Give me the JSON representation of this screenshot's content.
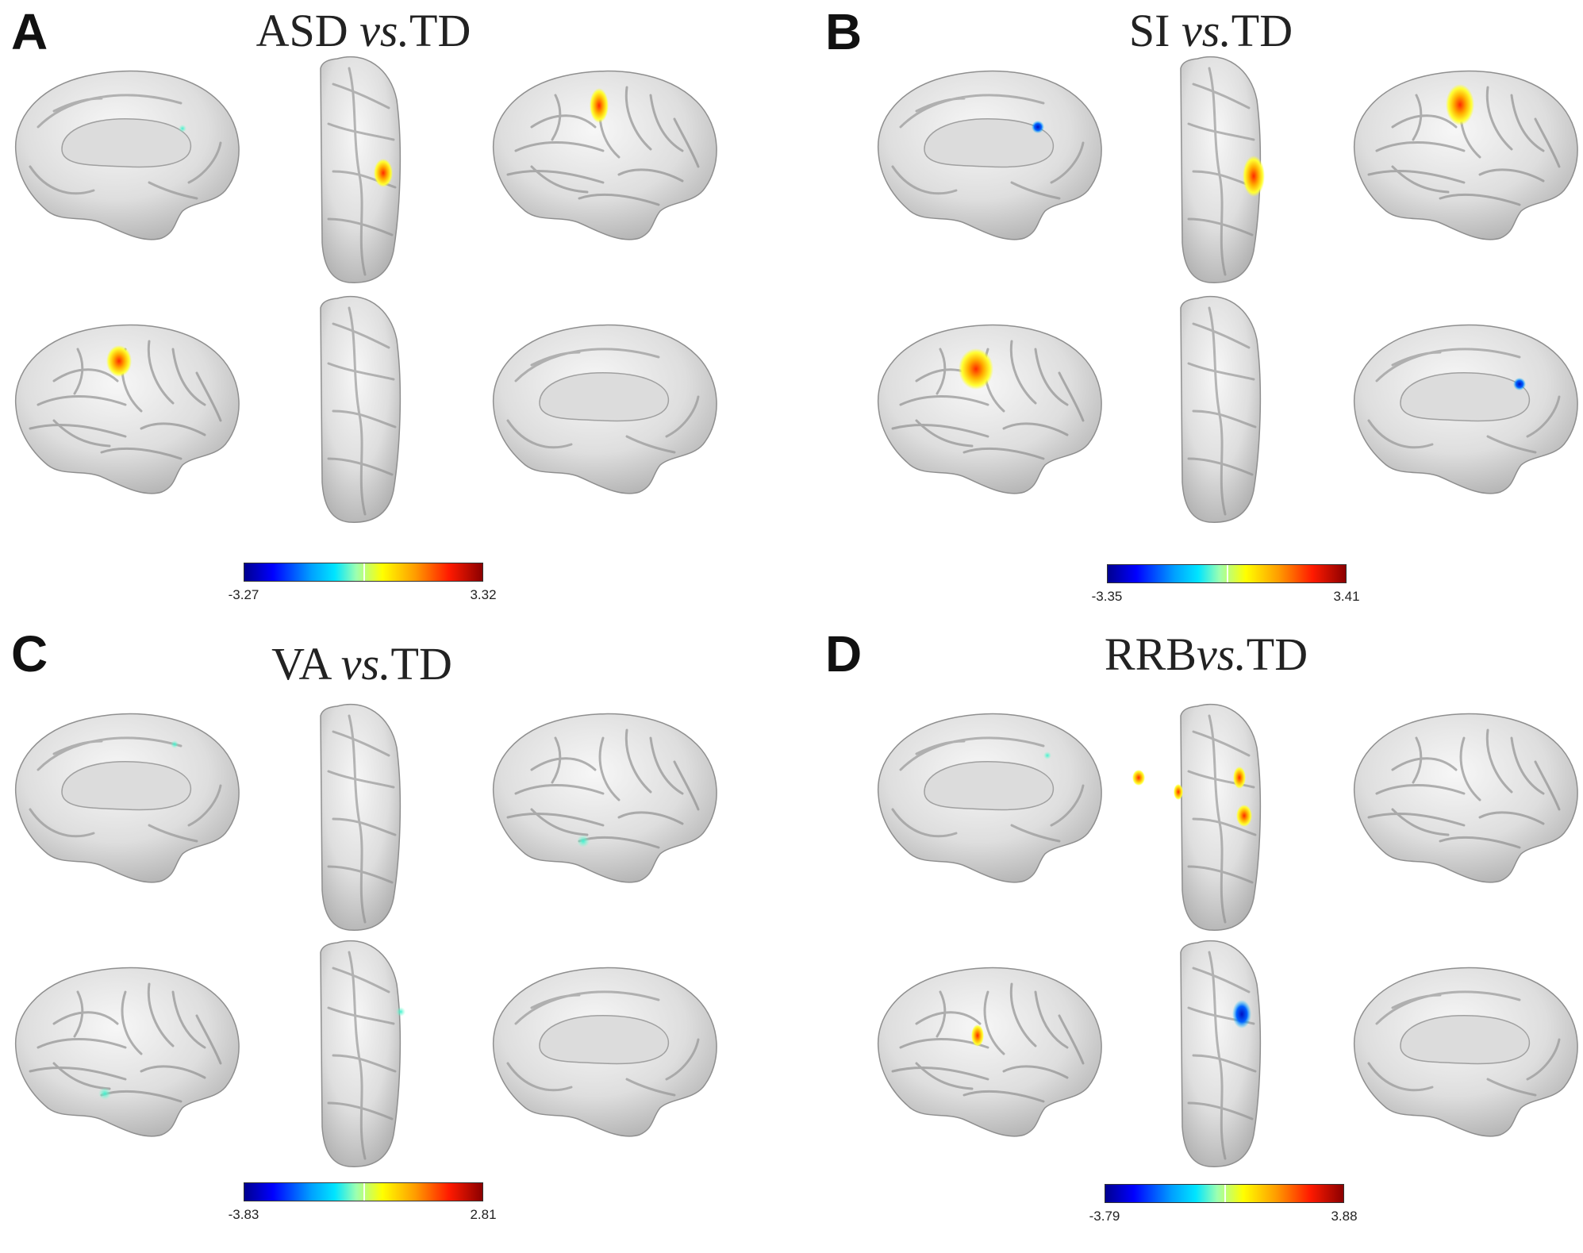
{
  "panels": [
    {
      "letter": "A",
      "group": "ASD",
      "vs": "vs.",
      "ref": "TD",
      "min": "-3.27",
      "max": "3.32"
    },
    {
      "letter": "B",
      "group": "SI",
      "vs": "vs.",
      "ref": "TD",
      "min": "-3.35",
      "max": "3.41"
    },
    {
      "letter": "C",
      "group": "VA",
      "vs": "vs.",
      "ref": "TD",
      "min": "-3.83",
      "max": "2.81"
    },
    {
      "letter": "D",
      "group": "RRB",
      "vs": "vs.",
      "ref": "TD",
      "min": "-3.79",
      "max": "3.88"
    }
  ],
  "colormap": "jet",
  "colors": {
    "brain": "#d9d9d9",
    "medial_wall": "#dcdcdc",
    "sulcus": "#8a8a8a"
  }
}
